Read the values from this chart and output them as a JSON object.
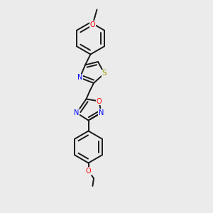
{
  "background_color": "#ebebeb",
  "bond_color": "#1a1a1a",
  "N_color": "#0000ff",
  "O_color": "#ff0000",
  "S_color": "#999900",
  "line_width": 1.4,
  "dbo": 0.012,
  "figsize": [
    3.0,
    3.0
  ],
  "dpi": 100,
  "xlim": [
    0.25,
    0.75
  ],
  "ylim": [
    0.02,
    1.02
  ]
}
